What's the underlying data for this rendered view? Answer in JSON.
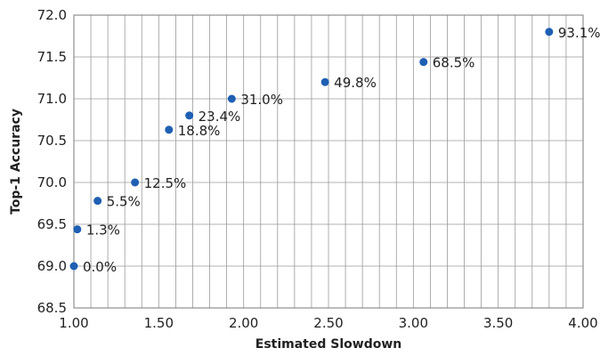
{
  "chart_data": {
    "type": "scatter",
    "xlabel": "Estimated Slowdown",
    "ylabel": "Top-1 Accuracy",
    "xlim": [
      1.0,
      4.0
    ],
    "ylim": [
      68.5,
      72.0
    ],
    "x_ticks": [
      "1.00",
      "1.50",
      "2.00",
      "2.50",
      "3.00",
      "3.50",
      "4.00"
    ],
    "y_ticks": [
      "68.5",
      "69.0",
      "69.5",
      "70.0",
      "70.5",
      "71.0",
      "71.5",
      "72.0"
    ],
    "x_minor_step": 0.1,
    "grid": true,
    "marker_color": "#1f5fb3",
    "points": [
      {
        "x": 1.0,
        "y": 69.0,
        "label": "0.0%"
      },
      {
        "x": 1.02,
        "y": 69.44,
        "label": "1.3%"
      },
      {
        "x": 1.14,
        "y": 69.78,
        "label": "5.5%"
      },
      {
        "x": 1.36,
        "y": 70.0,
        "label": "12.5%"
      },
      {
        "x": 1.56,
        "y": 70.63,
        "label": "18.8%"
      },
      {
        "x": 1.68,
        "y": 70.8,
        "label": "23.4%"
      },
      {
        "x": 1.93,
        "y": 71.0,
        "label": "31.0%"
      },
      {
        "x": 2.48,
        "y": 71.2,
        "label": "49.8%"
      },
      {
        "x": 3.06,
        "y": 71.44,
        "label": "68.5%"
      },
      {
        "x": 3.8,
        "y": 71.8,
        "label": "93.1%"
      }
    ]
  }
}
